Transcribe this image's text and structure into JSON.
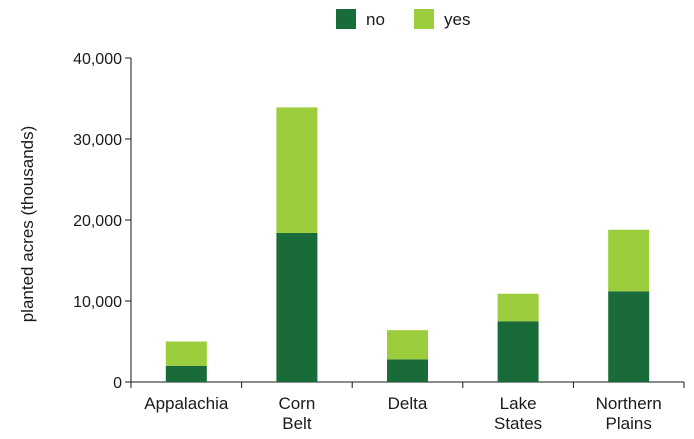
{
  "chart_data": {
    "type": "bar",
    "stacked": true,
    "title": "",
    "xlabel": "",
    "ylabel": "planted acres (thousands)",
    "ylim": [
      0,
      40000
    ],
    "yticks": [
      "0",
      "10,000",
      "20,000",
      "30,000",
      "40,000"
    ],
    "ytick_values": [
      0,
      10000,
      20000,
      30000,
      40000
    ],
    "categories": [
      [
        "Appalachia"
      ],
      [
        "Corn",
        "Belt"
      ],
      [
        "Delta"
      ],
      [
        "Lake",
        "States"
      ],
      [
        "Northern",
        "Plains"
      ]
    ],
    "series": [
      {
        "name": "no",
        "color": "#1a6b3a",
        "values": [
          2000,
          18400,
          2800,
          7500,
          11200
        ]
      },
      {
        "name": "yes",
        "color": "#9ccd3c",
        "values": [
          3000,
          15500,
          3600,
          3400,
          7600
        ]
      }
    ],
    "legend": {
      "position": "top-center"
    },
    "grid": false
  }
}
